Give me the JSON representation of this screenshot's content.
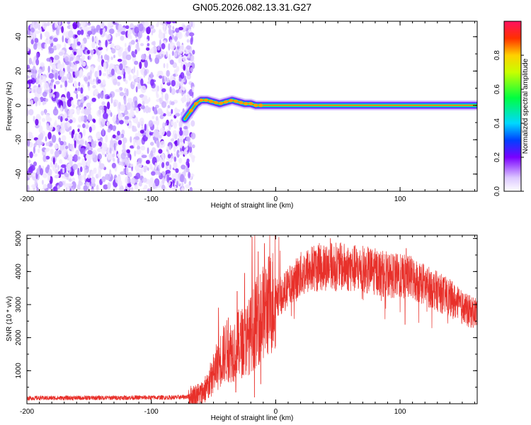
{
  "title": "GN05.2026.082.13.31.G27",
  "chart_data": [
    {
      "type": "heatmap",
      "name": "spectrogram",
      "xlabel": "Height of straight line (km)",
      "ylabel": "Frequency (Hz)",
      "xlim": [
        -200,
        162
      ],
      "ylim": [
        -50,
        49
      ],
      "xticks": [
        -200,
        -100,
        0,
        100
      ],
      "yticks": [
        -40,
        -20,
        0,
        20,
        40
      ],
      "noise_region_x": [
        -200,
        -69
      ],
      "track": {
        "x": [
          -73,
          -70,
          -67,
          -64,
          -60,
          -55,
          -50,
          -45,
          -40,
          -35,
          -30,
          -25,
          -20,
          -16,
          -13,
          -10,
          0,
          50,
          100,
          162
        ],
        "y": [
          -8,
          -5,
          -2,
          1,
          3,
          3,
          2,
          1,
          2,
          3,
          2,
          1,
          1,
          0,
          0,
          0,
          0,
          0,
          0,
          0
        ]
      },
      "colorbar": {
        "label": "Normalized spectral amplitude",
        "range": [
          0.0,
          1.0
        ],
        "ticks": [
          "0.0",
          "0.2",
          "0.4",
          "0.6",
          "0.8"
        ]
      }
    },
    {
      "type": "line",
      "name": "snr",
      "xlabel": "Height of straight line (km)",
      "ylabel": "SNR (10 * v/v)",
      "xlim": [
        -200,
        162
      ],
      "ylim": [
        0,
        5100
      ],
      "xticks": [
        -200,
        -100,
        0,
        100
      ],
      "yticks": [
        1000,
        2000,
        3000,
        4000,
        5000
      ],
      "color": "#e8302a",
      "envelope": {
        "x": [
          -200,
          -80,
          -68,
          -60,
          -55,
          -50,
          -45,
          -40,
          -35,
          -30,
          -25,
          -20,
          -15,
          -10,
          -5,
          0,
          5,
          10,
          20,
          30,
          40,
          50,
          60,
          70,
          80,
          90,
          100,
          110,
          120,
          130,
          140,
          150,
          155,
          162
        ],
        "y": [
          170,
          190,
          220,
          300,
          500,
          900,
          1300,
          1600,
          1600,
          1800,
          1900,
          2100,
          2500,
          2800,
          3000,
          3200,
          3300,
          3500,
          3900,
          4100,
          4150,
          4150,
          4100,
          4050,
          4000,
          3900,
          3850,
          3800,
          3600,
          3400,
          3200,
          2900,
          2800,
          2750
        ]
      },
      "spikes": [
        {
          "x": -46,
          "y": 2900
        },
        {
          "x": -38,
          "y": 2600
        },
        {
          "x": -31,
          "y": 3400
        },
        {
          "x": -25,
          "y": 3950
        },
        {
          "x": -19,
          "y": 5050
        },
        {
          "x": -14,
          "y": 4600
        },
        {
          "x": -9,
          "y": 4850
        },
        {
          "x": 44,
          "y": 5000
        },
        {
          "x": 105,
          "y": 4700
        }
      ],
      "dips": [
        {
          "x": -32,
          "y": 350
        },
        {
          "x": -17,
          "y": 200
        },
        {
          "x": -12,
          "y": 600
        },
        {
          "x": 104,
          "y": 2400
        }
      ]
    }
  ]
}
